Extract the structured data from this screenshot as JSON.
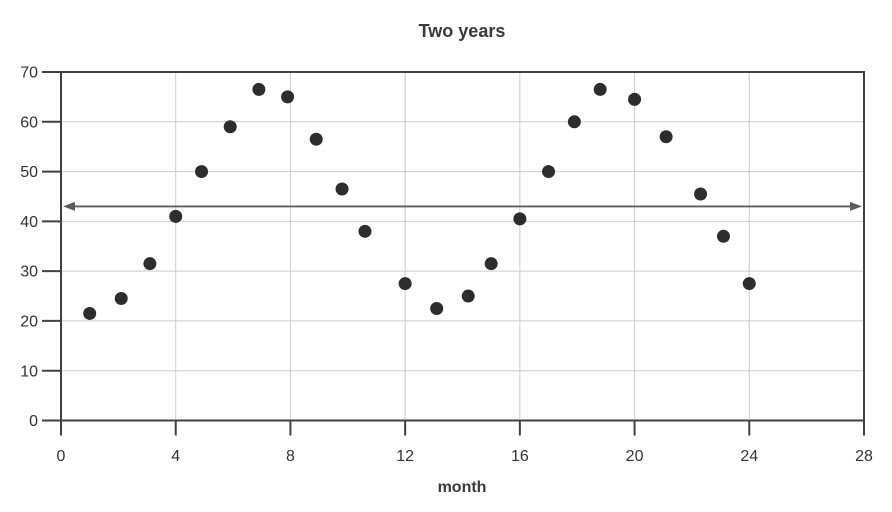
{
  "chart_data": {
    "type": "scatter",
    "title": "Two years",
    "xlabel": "month",
    "ylabel": "",
    "xlim": [
      0,
      28
    ],
    "ylim": [
      0,
      70
    ],
    "x_ticks": [
      0,
      4,
      8,
      12,
      16,
      20,
      24,
      28
    ],
    "y_ticks": [
      0,
      10,
      20,
      30,
      40,
      50,
      60,
      70
    ],
    "grid": true,
    "legend": "none",
    "points": [
      {
        "x": 1.0,
        "y": 21.5
      },
      {
        "x": 2.1,
        "y": 24.5
      },
      {
        "x": 3.1,
        "y": 31.5
      },
      {
        "x": 4.0,
        "y": 41.0
      },
      {
        "x": 4.9,
        "y": 50.0
      },
      {
        "x": 5.9,
        "y": 59.0
      },
      {
        "x": 6.9,
        "y": 66.5
      },
      {
        "x": 7.9,
        "y": 65.0
      },
      {
        "x": 8.9,
        "y": 56.5
      },
      {
        "x": 9.8,
        "y": 46.5
      },
      {
        "x": 10.6,
        "y": 38.0
      },
      {
        "x": 12.0,
        "y": 27.5
      },
      {
        "x": 13.1,
        "y": 22.5
      },
      {
        "x": 14.2,
        "y": 25.0
      },
      {
        "x": 15.0,
        "y": 31.5
      },
      {
        "x": 16.0,
        "y": 40.5
      },
      {
        "x": 17.0,
        "y": 50.0
      },
      {
        "x": 17.9,
        "y": 60.0
      },
      {
        "x": 18.8,
        "y": 66.5
      },
      {
        "x": 20.0,
        "y": 64.5
      },
      {
        "x": 21.1,
        "y": 57.0
      },
      {
        "x": 22.3,
        "y": 45.5
      },
      {
        "x": 23.1,
        "y": 37.0
      },
      {
        "x": 24.0,
        "y": 27.5
      }
    ],
    "annotation_line": {
      "y": 43,
      "style": "double-arrow",
      "description": "horizontal line with arrowheads on both ends spanning the plot"
    },
    "colors": {
      "background": "#ffffff",
      "axis": "#404040",
      "grid": "#cccccc",
      "point": "#2d2d2d",
      "arrow": "#5d5d5d",
      "text": "#333333",
      "title_text": "#3a3a3a"
    }
  }
}
